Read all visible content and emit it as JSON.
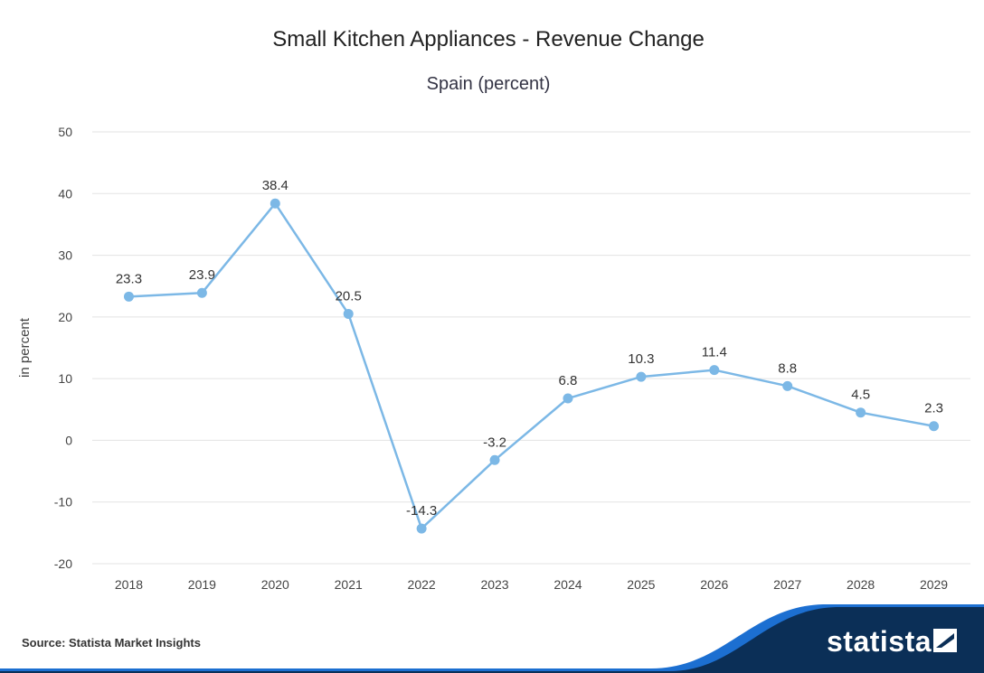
{
  "header": {
    "title": "Small Kitchen Appliances - Revenue Change",
    "subtitle": "Spain (percent)"
  },
  "footer": {
    "source": "Source: Statista Market Insights",
    "brand": "statista"
  },
  "colors": {
    "line": "#7cb8e6",
    "grid": "#e3e3e3",
    "text": "#444444",
    "brand_dark": "#0b2f57",
    "brand_accent": "#1c6fd1"
  },
  "chart_data": {
    "type": "line",
    "title": "Small Kitchen Appliances - Revenue Change",
    "subtitle": "Spain (percent)",
    "xlabel": "",
    "ylabel": "in percent",
    "categories": [
      "2018",
      "2019",
      "2020",
      "2021",
      "2022",
      "2023",
      "2024",
      "2025",
      "2026",
      "2027",
      "2028",
      "2029"
    ],
    "values": [
      23.3,
      23.9,
      38.4,
      20.5,
      -14.3,
      -3.2,
      6.8,
      10.3,
      11.4,
      8.8,
      4.5,
      2.3
    ],
    "labels": [
      "23.3",
      "23.9",
      "38.4",
      "20.5",
      "-14.3",
      "-3.2",
      "6.8",
      "10.3",
      "11.4",
      "8.8",
      "4.5",
      "2.3"
    ],
    "ylim": [
      -20,
      50
    ],
    "yticks": [
      "50",
      "40",
      "30",
      "20",
      "10",
      "0",
      "-10",
      "-20"
    ],
    "ytick_values": [
      50,
      40,
      30,
      20,
      10,
      0,
      -10,
      -20
    ],
    "grid": true,
    "legend": "none"
  }
}
